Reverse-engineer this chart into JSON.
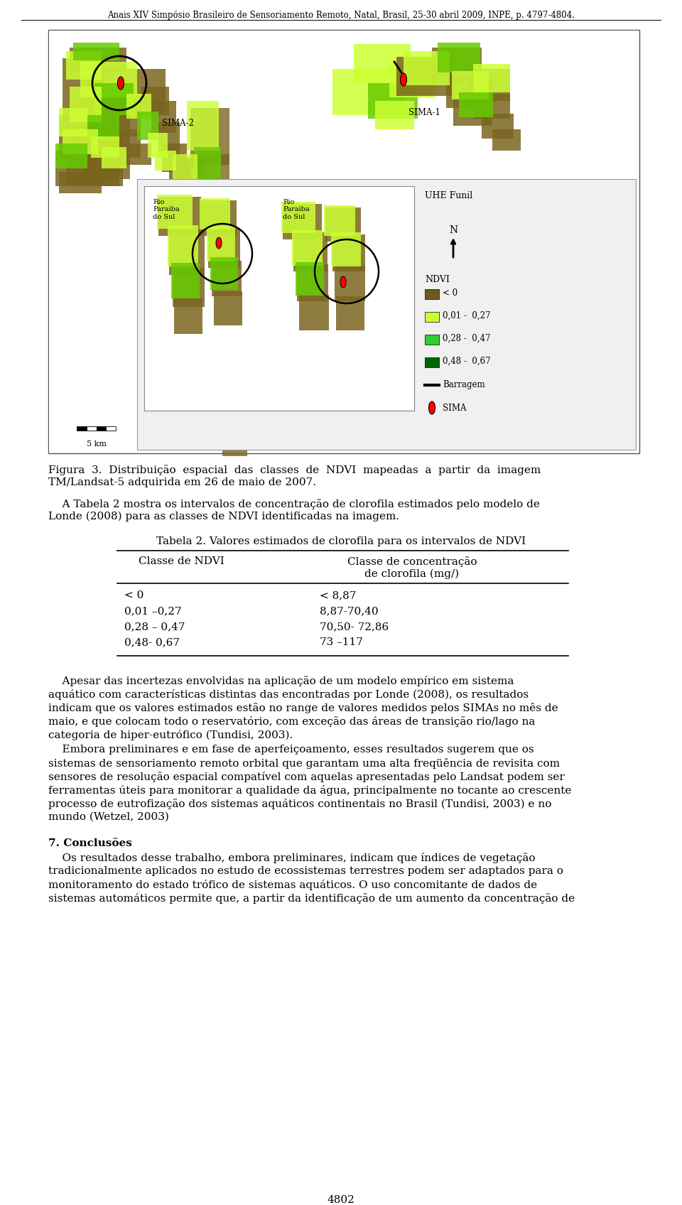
{
  "header": "Anais XIV Simpósio Brasileiro de Sensoriamento Remoto, Natal, Brasil, 25-30 abril 2009, INPE, p. 4797-4804.",
  "figure_caption_line1": "Figura  3.  Distribuição  espacial  das  classes  de  NDVI  mapeadas  a  partir  da  imagem",
  "figure_caption_line2": "TM/Landsat-5 adquirida em 26 de maio de 2007.",
  "para1_line1": "    A Tabela 2 mostra os intervalos de concentração de clorofila estimados pelo modelo de",
  "para1_line2": "Londe (2008) para as classes de NDVI identificadas na imagem.",
  "table_title": "Tabela 2. Valores estimados de clorofila para os intervalos de NDVI",
  "col1_header": "Classe de NDVI",
  "col2_header_line1": "Classe de concentração",
  "col2_header_line2": "de clorofila (mg/)",
  "rows": [
    [
      "< 0",
      "< 8,87"
    ],
    [
      "0,01 –0,27",
      "8,87-70,40"
    ],
    [
      "0,28 – 0,47",
      "70,50- 72,86"
    ],
    [
      "0,48- 0,67",
      "73 –117"
    ]
  ],
  "para2_lines": [
    "    Apesar das incertezas envolvidas na aplicação de um modelo empírico em sistema",
    "aquático com características distintas das encontradas por Londe (2008), os resultados",
    "indicam que os valores estimados estão no range de valores medidos pelos SIMAs no mês de",
    "maio, e que colocam todo o reservatório, com exceção das áreas de transição rio/lago na",
    "categoria de hiper-eutrófico (Tundisi, 2003)."
  ],
  "para3_lines": [
    "    Embora preliminares e em fase de aperfeiçoamento, esses resultados sugerem que os",
    "sistemas de sensoriamento remoto orbital que garantam uma alta freqüência de revisita com",
    "sensores de resolução espacial compatível com aquelas apresentadas pelo Landsat podem ser",
    "ferramentas úteis para monitorar a qualidade da água, principalmente no tocante ao crescente",
    "processo de eutrofização dos sistemas aquáticos continentais no Brasil (Tundisi, 2003) e no",
    "mundo (Wetzel, 2003)"
  ],
  "section_title": "7. Conclusões",
  "para4_lines": [
    "    Os resultados desse trabalho, embora preliminares, indicam que índices de vegetação",
    "tradicionalmente aplicados no estudo de ecossistemas terrestres podem ser adaptados para o",
    "monitoramento do estado trófico de sistemas aquáticos. O uso concomitante de dados de",
    "sistemas automáticos permite que, a partir da identificação de um aumento da concentração de"
  ],
  "footer": "4802",
  "bg_color": "#ffffff",
  "text_color": "#000000",
  "ndvi_legend_colors": [
    "#6b5a1e",
    "#ccff33",
    "#33cc33",
    "#006600"
  ],
  "ndvi_legend_labels": [
    "< 0",
    "0,01 -  0,27",
    "0,28 -  0,47",
    "0,48 -  0,67"
  ]
}
